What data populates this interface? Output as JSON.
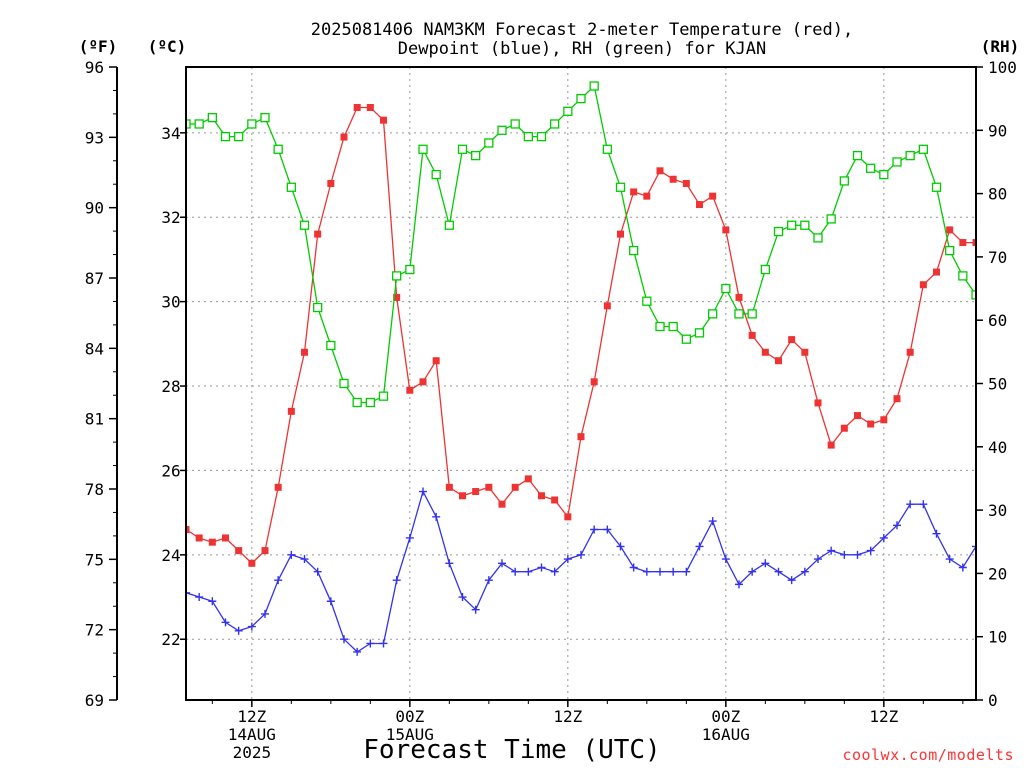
{
  "chart_data": {
    "type": "line",
    "title_lines": [
      "2025081406 NAM3KM Forecast 2-meter Temperature (red),",
      "Dewpoint (blue), RH (green) for KJAN"
    ],
    "xlabel": "Forecast Time (UTC)",
    "credit": "coolwx.com/modelts",
    "units": {
      "f": "(ºF)",
      "c": "(ºC)",
      "rh": "(RH)"
    },
    "x_hours": {
      "start": 7,
      "end": 67,
      "step": 1
    },
    "x_ticks": [
      {
        "hour": 12,
        "lines": [
          "12Z",
          "14AUG",
          "2025"
        ]
      },
      {
        "hour": 24,
        "lines": [
          "00Z",
          "15AUG"
        ]
      },
      {
        "hour": 36,
        "lines": [
          "12Z"
        ]
      },
      {
        "hour": 48,
        "lines": [
          "00Z",
          "16AUG"
        ]
      },
      {
        "hour": 60,
        "lines": [
          "12Z"
        ]
      }
    ],
    "y_fahrenheit": {
      "range": [
        69,
        96
      ],
      "ticks": [
        "69",
        "72",
        "75",
        "78",
        "81",
        "84",
        "87",
        "90",
        "93",
        "96"
      ]
    },
    "y_celsius": {
      "range": [
        20.56,
        35.56
      ],
      "ticks": [
        "22",
        "24",
        "26",
        "28",
        "30",
        "32",
        "34"
      ]
    },
    "y_rh": {
      "range": [
        0,
        100
      ],
      "ticks": [
        "0",
        "10",
        "20",
        "30",
        "40",
        "50",
        "60",
        "70",
        "80",
        "90",
        "100"
      ]
    },
    "grid": true,
    "series": [
      {
        "key": "temperature",
        "axis": "c",
        "color": "#ee3333",
        "marker": "filled-square",
        "values": [
          24.6,
          24.4,
          24.3,
          24.4,
          24.1,
          23.8,
          24.1,
          25.6,
          27.4,
          28.8,
          31.6,
          32.8,
          33.9,
          34.6,
          34.6,
          34.3,
          30.1,
          27.9,
          28.1,
          28.6,
          25.6,
          25.4,
          25.5,
          25.6,
          25.2,
          25.6,
          25.8,
          25.4,
          25.3,
          24.9,
          26.8,
          28.1,
          29.9,
          31.6,
          32.6,
          32.5,
          33.1,
          32.9,
          32.8,
          32.3,
          32.5,
          31.7,
          30.1,
          29.2,
          28.8,
          28.6,
          29.1,
          28.8,
          27.6,
          26.6,
          27.0,
          27.3,
          27.1,
          27.2,
          27.7,
          28.8,
          30.4,
          30.7,
          31.7,
          31.4,
          31.4
        ]
      },
      {
        "key": "dewpoint",
        "axis": "c",
        "color": "#3333ee",
        "marker": "plus",
        "values": [
          23.1,
          23.0,
          22.9,
          22.4,
          22.2,
          22.3,
          22.6,
          23.4,
          24.0,
          23.9,
          23.6,
          22.9,
          22.0,
          21.7,
          21.9,
          21.9,
          23.4,
          24.4,
          25.5,
          24.9,
          23.8,
          23.0,
          22.7,
          23.4,
          23.8,
          23.6,
          23.6,
          23.7,
          23.6,
          23.9,
          24.0,
          24.6,
          24.6,
          24.2,
          23.7,
          23.6,
          23.6,
          23.6,
          23.6,
          24.2,
          24.8,
          23.9,
          23.3,
          23.6,
          23.8,
          23.6,
          23.4,
          23.6,
          23.9,
          24.1,
          24.0,
          24.0,
          24.1,
          24.4,
          24.7,
          25.2,
          25.2,
          24.5,
          23.9,
          23.7,
          24.2
        ]
      },
      {
        "key": "rh",
        "axis": "rh",
        "color": "#00cc00",
        "marker": "open-square",
        "values": [
          91,
          91,
          92,
          89,
          89,
          91,
          92,
          87,
          81,
          75,
          62,
          56,
          50,
          47,
          47,
          48,
          67,
          68,
          87,
          83,
          75,
          87,
          86,
          88,
          90,
          91,
          89,
          89,
          91,
          93,
          95,
          97,
          87,
          81,
          71,
          63,
          59,
          59,
          57,
          58,
          61,
          65,
          61,
          61,
          68,
          74,
          75,
          75,
          73,
          76,
          82,
          86,
          84,
          83,
          85,
          86,
          87,
          81,
          71,
          67,
          64
        ]
      }
    ]
  }
}
